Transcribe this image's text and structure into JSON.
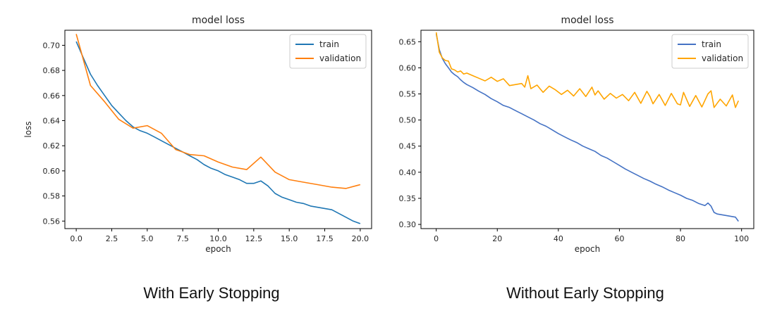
{
  "captions": {
    "left": "With Early Stopping",
    "right": "Without Early Stopping"
  },
  "chart_data": [
    {
      "type": "line",
      "title": "model loss",
      "xlabel": "epoch",
      "ylabel": "loss",
      "xlim": [
        -0.8,
        20.8
      ],
      "ylim": [
        0.554,
        0.712
      ],
      "xticks": [
        0.0,
        2.5,
        5.0,
        7.5,
        10.0,
        12.5,
        15.0,
        17.5,
        20.0
      ],
      "xtick_labels": [
        "0.0",
        "2.5",
        "5.0",
        "7.5",
        "10.0",
        "12.5",
        "15.0",
        "17.5",
        "20.0"
      ],
      "yticks": [
        0.56,
        0.58,
        0.6,
        0.62,
        0.64,
        0.66,
        0.68,
        0.7
      ],
      "ytick_labels": [
        "0.56",
        "0.58",
        "0.60",
        "0.62",
        "0.64",
        "0.66",
        "0.68",
        "0.70"
      ],
      "grid": false,
      "legend_position": "top-right",
      "series": [
        {
          "name": "train",
          "color": "#1f77b4",
          "x": [
            0,
            0.5,
            1,
            1.5,
            2,
            2.5,
            3,
            3.5,
            4,
            4.5,
            5,
            5.5,
            6,
            6.5,
            7,
            7.5,
            8,
            8.5,
            9,
            9.5,
            10,
            10.5,
            11,
            11.5,
            12,
            12.5,
            13,
            13.5,
            14,
            14.5,
            15,
            15.5,
            16,
            16.5,
            17,
            17.5,
            18,
            18.5,
            19,
            19.5,
            20
          ],
          "y": [
            0.703,
            0.69,
            0.677,
            0.668,
            0.66,
            0.652,
            0.646,
            0.64,
            0.635,
            0.632,
            0.63,
            0.627,
            0.624,
            0.621,
            0.618,
            0.615,
            0.612,
            0.609,
            0.605,
            0.602,
            0.6,
            0.597,
            0.595,
            0.593,
            0.59,
            0.59,
            0.592,
            0.588,
            0.582,
            0.579,
            0.577,
            0.575,
            0.574,
            0.572,
            0.571,
            0.57,
            0.569,
            0.566,
            0.563,
            0.56,
            0.558
          ]
        },
        {
          "name": "validation",
          "color": "#ff7f0e",
          "x": [
            0,
            1,
            2,
            3,
            4,
            5,
            6,
            7,
            8,
            9,
            10,
            11,
            12,
            13,
            14,
            15,
            16,
            17,
            18,
            19,
            20
          ],
          "y": [
            0.709,
            0.668,
            0.655,
            0.641,
            0.634,
            0.636,
            0.63,
            0.617,
            0.613,
            0.612,
            0.607,
            0.603,
            0.601,
            0.611,
            0.599,
            0.593,
            0.591,
            0.589,
            0.587,
            0.586,
            0.589
          ]
        }
      ]
    },
    {
      "type": "line",
      "title": "model loss",
      "xlabel": "epoch",
      "ylabel": "",
      "xlim": [
        -5,
        104
      ],
      "ylim": [
        0.292,
        0.672
      ],
      "xticks": [
        0,
        20,
        40,
        60,
        80,
        100
      ],
      "xtick_labels": [
        "0",
        "20",
        "40",
        "60",
        "80",
        "100"
      ],
      "yticks": [
        0.3,
        0.35,
        0.4,
        0.45,
        0.5,
        0.55,
        0.6,
        0.65
      ],
      "ytick_labels": [
        "0.30",
        "0.35",
        "0.40",
        "0.45",
        "0.50",
        "0.55",
        "0.60",
        "0.65"
      ],
      "grid": false,
      "legend_position": "top-right",
      "series": [
        {
          "name": "train",
          "color": "#4472c4",
          "x": [
            0,
            1,
            2,
            3,
            4,
            5,
            6,
            7,
            8,
            9,
            10,
            12,
            14,
            16,
            18,
            20,
            22,
            24,
            26,
            28,
            30,
            32,
            34,
            36,
            38,
            40,
            42,
            44,
            46,
            48,
            50,
            52,
            54,
            56,
            58,
            60,
            62,
            64,
            66,
            68,
            70,
            72,
            74,
            76,
            78,
            80,
            82,
            84,
            86,
            88,
            89,
            90,
            91,
            92,
            94,
            96,
            98,
            99
          ],
          "y": [
            0.665,
            0.635,
            0.618,
            0.608,
            0.6,
            0.592,
            0.587,
            0.583,
            0.577,
            0.572,
            0.568,
            0.562,
            0.555,
            0.549,
            0.541,
            0.535,
            0.528,
            0.524,
            0.518,
            0.512,
            0.506,
            0.5,
            0.493,
            0.488,
            0.481,
            0.474,
            0.468,
            0.462,
            0.457,
            0.45,
            0.445,
            0.44,
            0.432,
            0.427,
            0.42,
            0.413,
            0.406,
            0.4,
            0.394,
            0.388,
            0.383,
            0.377,
            0.372,
            0.366,
            0.361,
            0.356,
            0.35,
            0.346,
            0.34,
            0.336,
            0.341,
            0.335,
            0.323,
            0.32,
            0.318,
            0.316,
            0.314,
            0.306
          ]
        },
        {
          "name": "validation",
          "color": "#ffa500",
          "x": [
            0,
            1,
            2,
            3,
            4,
            5,
            6,
            7,
            8,
            9,
            10,
            12,
            14,
            16,
            18,
            20,
            22,
            24,
            26,
            28,
            29,
            30,
            31,
            33,
            35,
            37,
            39,
            41,
            43,
            45,
            47,
            49,
            51,
            52,
            53,
            55,
            57,
            59,
            61,
            63,
            65,
            67,
            69,
            70,
            71,
            73,
            75,
            77,
            79,
            80,
            81,
            83,
            85,
            87,
            89,
            90,
            91,
            93,
            95,
            97,
            98,
            99
          ],
          "y": [
            0.668,
            0.63,
            0.619,
            0.614,
            0.613,
            0.598,
            0.596,
            0.592,
            0.594,
            0.588,
            0.59,
            0.585,
            0.58,
            0.575,
            0.582,
            0.574,
            0.579,
            0.566,
            0.568,
            0.57,
            0.563,
            0.585,
            0.56,
            0.567,
            0.553,
            0.565,
            0.558,
            0.549,
            0.557,
            0.546,
            0.56,
            0.545,
            0.563,
            0.548,
            0.556,
            0.54,
            0.551,
            0.542,
            0.549,
            0.537,
            0.553,
            0.532,
            0.555,
            0.545,
            0.531,
            0.549,
            0.528,
            0.551,
            0.531,
            0.529,
            0.553,
            0.526,
            0.547,
            0.525,
            0.55,
            0.556,
            0.524,
            0.54,
            0.527,
            0.548,
            0.524,
            0.537
          ]
        }
      ]
    }
  ]
}
